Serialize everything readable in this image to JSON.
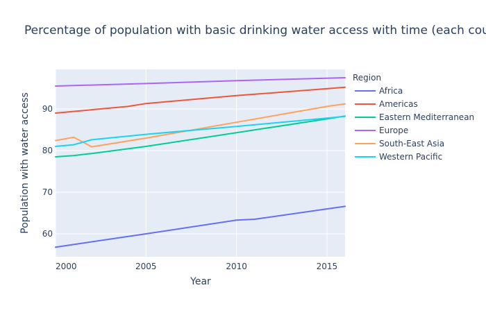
{
  "chart_data": {
    "type": "line",
    "title": "Percentage of population with basic drinking water access with time (each cou",
    "xlabel": "Year",
    "ylabel": "Population with water access",
    "xlim": [
      2000,
      2016
    ],
    "ylim": [
      54.5,
      99.5
    ],
    "xticks": [
      2000,
      2005,
      2010,
      2015
    ],
    "yticks": [
      60,
      70,
      80,
      90
    ],
    "grid": true,
    "legend": {
      "title": "Region",
      "position": "right"
    },
    "series": [
      {
        "name": "Africa",
        "color": "#636efa",
        "x": [
          2000,
          2005,
          2010,
          2011,
          2016
        ],
        "y": [
          56.8,
          60.0,
          63.3,
          63.5,
          66.6
        ]
      },
      {
        "name": "Americas",
        "color": "#EF553B",
        "x": [
          2000,
          2004,
          2005,
          2010,
          2016
        ],
        "y": [
          89.0,
          90.6,
          91.3,
          93.2,
          95.2
        ]
      },
      {
        "name": "Eastern Mediterranean",
        "color": "#00cc96",
        "x": [
          2000,
          2001,
          2002,
          2005,
          2010,
          2015,
          2016
        ],
        "y": [
          78.5,
          78.8,
          79.3,
          81.0,
          84.3,
          87.6,
          88.3
        ]
      },
      {
        "name": "Europe",
        "color": "#ab63fa",
        "x": [
          2000,
          2005,
          2010,
          2016
        ],
        "y": [
          95.5,
          96.1,
          96.8,
          97.5
        ]
      },
      {
        "name": "South-East Asia",
        "color": "#FFA15A",
        "x": [
          2000,
          2001,
          2002,
          2005,
          2010,
          2015,
          2016
        ],
        "y": [
          82.4,
          83.2,
          80.9,
          83.0,
          86.8,
          90.6,
          91.2
        ]
      },
      {
        "name": "Western Pacific",
        "color": "#19d3f3",
        "x": [
          2000,
          2001,
          2002,
          2005,
          2010,
          2015,
          2016
        ],
        "y": [
          81.0,
          81.4,
          82.6,
          83.9,
          85.8,
          87.8,
          88.2
        ]
      }
    ]
  }
}
